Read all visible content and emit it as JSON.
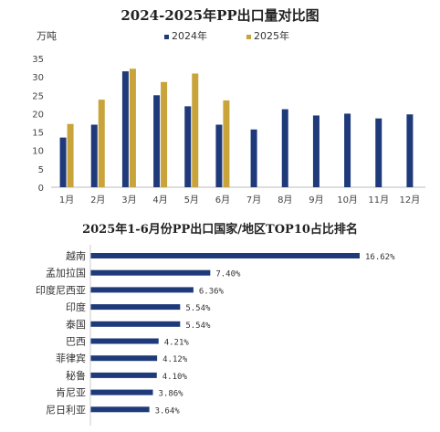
{
  "charts_meta": {
    "title1": "2024-2025年PP出口量对比图",
    "title2": "2025年1-6月份PP出口国家/地区TOP10占比排名",
    "unit": "万吨"
  },
  "chart_data": [
    {
      "type": "bar",
      "title": "2024-2025年PP出口量对比图",
      "ylabel": "万吨",
      "categories": [
        "1月",
        "2月",
        "3月",
        "4月",
        "5月",
        "6月",
        "7月",
        "8月",
        "9月",
        "10月",
        "11月",
        "12月"
      ],
      "series": [
        {
          "name": "2024年",
          "color": "#1f3a7a",
          "values": [
            13.5,
            17,
            31.5,
            25,
            22,
            17,
            15.7,
            21.2,
            19.5,
            20,
            18.7,
            19.8
          ]
        },
        {
          "name": "2025年",
          "color": "#c9a43a",
          "values": [
            17.2,
            23.8,
            32.2,
            28.6,
            30.9,
            23.6,
            null,
            null,
            null,
            null,
            null,
            null
          ]
        }
      ],
      "ylim": [
        0,
        35
      ],
      "yticks": [
        0,
        5,
        10,
        15,
        20,
        25,
        30,
        35
      ],
      "grid": false,
      "legend": "top-center"
    },
    {
      "type": "bar",
      "orientation": "horizontal",
      "title": "2025年1-6月份PP出口国家/地区TOP10占比排名",
      "categories": [
        "越南",
        "孟加拉国",
        "印度尼西亚",
        "印度",
        "泰国",
        "巴西",
        "菲律宾",
        "秘鲁",
        "肯尼亚",
        "尼日利亚"
      ],
      "values": [
        16.62,
        7.4,
        6.36,
        5.54,
        5.54,
        4.21,
        4.12,
        4.1,
        3.86,
        3.64
      ],
      "value_labels": [
        "16.62%",
        "7.40%",
        "6.36%",
        "5.54%",
        "5.54%",
        "4.21%",
        "4.12%",
        "4.10%",
        "3.86%",
        "3.64%"
      ],
      "color": "#1f3a7a"
    }
  ]
}
